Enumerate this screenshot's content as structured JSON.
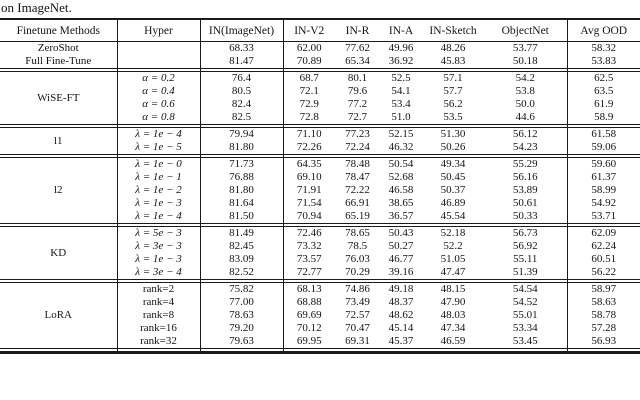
{
  "caption": "on ImageNet.",
  "colors": {
    "text": "#141414",
    "rule": "#1a1a1a",
    "background": "#ffffff"
  },
  "table": {
    "columns": [
      "Finetune Methods",
      "Hyper",
      "IN(ImageNet)",
      "IN-V2",
      "IN-R",
      "IN-A",
      "IN-Sketch",
      "ObjectNet",
      "Avg OOD"
    ],
    "blocks": [
      {
        "method": "ZeroShot",
        "rule_after": false,
        "rows": [
          {
            "hyper": "",
            "values": [
              "68.33",
              "62.00",
              "77.62",
              "49.96",
              "48.26",
              "53.77",
              "58.32"
            ]
          }
        ]
      },
      {
        "method": "Full Fine-Tune",
        "rule_after": true,
        "rows": [
          {
            "hyper": "",
            "values": [
              "81.47",
              "70.89",
              "65.34",
              "36.92",
              "45.83",
              "50.18",
              "53.83"
            ]
          }
        ]
      },
      {
        "method": "WiSE-FT",
        "rule_after": true,
        "rows": [
          {
            "hyper": "α = 0.2",
            "values": [
              "76.4",
              "68.7",
              "80.1",
              "52.5",
              "57.1",
              "54.2",
              "62.5"
            ]
          },
          {
            "hyper": "α = 0.4",
            "values": [
              "80.5",
              "72.1",
              "79.6",
              "54.1",
              "57.7",
              "53.8",
              "63.5"
            ]
          },
          {
            "hyper": "α = 0.6",
            "values": [
              "82.4",
              "72.9",
              "77.2",
              "53.4",
              "56.2",
              "50.0",
              "61.9"
            ]
          },
          {
            "hyper": "α = 0.8",
            "values": [
              "82.5",
              "72.8",
              "72.7",
              "51.0",
              "53.5",
              "44.6",
              "58.9"
            ]
          }
        ]
      },
      {
        "method": "l1",
        "rule_after": true,
        "rows": [
          {
            "hyper": "λ = 1e − 4",
            "values": [
              "79.94",
              "71.10",
              "77.23",
              "52.15",
              "51.30",
              "56.12",
              "61.58"
            ]
          },
          {
            "hyper": "λ = 1e − 5",
            "values": [
              "81.80",
              "72.26",
              "72.24",
              "46.32",
              "50.26",
              "54.23",
              "59.06"
            ]
          }
        ]
      },
      {
        "method": "l2",
        "rule_after": true,
        "rows": [
          {
            "hyper": "λ = 1e − 0",
            "values": [
              "71.73",
              "64.35",
              "78.48",
              "50.54",
              "49.34",
              "55.29",
              "59.60"
            ]
          },
          {
            "hyper": "λ = 1e − 1",
            "values": [
              "76.88",
              "69.10",
              "78.47",
              "52.68",
              "50.45",
              "56.16",
              "61.37"
            ]
          },
          {
            "hyper": "λ = 1e − 2",
            "values": [
              "81.80",
              "71.91",
              "72.22",
              "46.58",
              "50.37",
              "53.89",
              "58.99"
            ]
          },
          {
            "hyper": "λ = 1e − 3",
            "values": [
              "81.64",
              "71.54",
              "66.91",
              "38.65",
              "46.89",
              "50.61",
              "54.92"
            ]
          },
          {
            "hyper": "λ = 1e − 4",
            "values": [
              "81.50",
              "70.94",
              "65.19",
              "36.57",
              "45.54",
              "50.33",
              "53.71"
            ]
          }
        ]
      },
      {
        "method": "KD",
        "rule_after": true,
        "rows": [
          {
            "hyper": "λ = 5e − 3",
            "values": [
              "81.49",
              "72.46",
              "78.65",
              "50.43",
              "52.18",
              "56.73",
              "62.09"
            ]
          },
          {
            "hyper": "λ = 3e − 3",
            "values": [
              "82.45",
              "73.32",
              "78.5",
              "50.27",
              "52.2",
              "56.92",
              "62.24"
            ]
          },
          {
            "hyper": "λ = 1e − 3",
            "values": [
              "83.09",
              "73.57",
              "76.03",
              "46.77",
              "51.05",
              "55.11",
              "60.51"
            ]
          },
          {
            "hyper": "λ = 3e − 4",
            "values": [
              "82.52",
              "72.77",
              "70.29",
              "39.16",
              "47.47",
              "51.39",
              "56.22"
            ]
          }
        ]
      },
      {
        "method": "LoRA",
        "rule_after": false,
        "rows": [
          {
            "hyper": "rank=2",
            "values": [
              "75.82",
              "68.13",
              "74.86",
              "49.18",
              "48.15",
              "54.54",
              "58.97"
            ]
          },
          {
            "hyper": "rank=4",
            "values": [
              "77.00",
              "68.88",
              "73.49",
              "48.37",
              "47.90",
              "54.52",
              "58.63"
            ]
          },
          {
            "hyper": "rank=8",
            "values": [
              "78.63",
              "69.69",
              "72.57",
              "48.62",
              "48.03",
              "55.01",
              "58.78"
            ]
          },
          {
            "hyper": "rank=16",
            "values": [
              "79.20",
              "70.12",
              "70.47",
              "45.14",
              "47.34",
              "53.34",
              "57.28"
            ]
          },
          {
            "hyper": "rank=32",
            "values": [
              "79.63",
              "69.95",
              "69.31",
              "45.37",
              "46.59",
              "53.45",
              "56.93"
            ]
          }
        ]
      }
    ]
  }
}
